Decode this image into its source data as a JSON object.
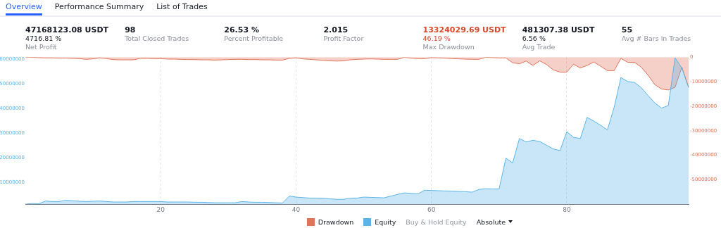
{
  "chart_data": [
    {
      "type": "other",
      "annotations": [
        "Overview",
        "Performance Summary",
        "List of Trades"
      ],
      "colors": [
        "#2962ff",
        "#131722",
        "#131722"
      ]
    },
    {
      "type": "other",
      "annotations": [
        "47168123.08 USDT\n4716.81 %\nNet Profit",
        "98\nTotal Closed Trades",
        "26.53 %\nPercent Profitable",
        "2.015\nProfit Factor",
        "13324029.69 USDT\n46.19 %\nMax Drawdown",
        "481307.38 USDT\n6.56 %\nAvg Trade",
        "55\nAvg # Bars in Trades"
      ],
      "colors": [
        "#131722",
        "#131722",
        "#131722",
        "#131722",
        "#d9482b",
        "#131722",
        "#131722"
      ]
    },
    {
      "type": "area",
      "x": [
        0,
        1,
        2,
        3,
        4,
        5,
        6,
        7,
        8,
        9,
        10,
        11,
        12,
        13,
        14,
        15,
        16,
        17,
        18,
        19,
        20,
        21,
        22,
        23,
        24,
        25,
        26,
        27,
        28,
        29,
        30,
        31,
        32,
        33,
        34,
        35,
        36,
        37,
        38,
        39,
        40,
        41,
        42,
        43,
        44,
        45,
        46,
        47,
        48,
        49,
        50,
        51,
        52,
        53,
        54,
        55,
        56,
        57,
        58,
        59,
        60,
        61,
        62,
        63,
        64,
        65,
        66,
        67,
        68,
        69,
        70,
        71,
        72,
        73,
        74,
        75,
        76,
        77,
        78,
        79,
        80,
        81,
        82,
        83,
        84,
        85,
        86,
        87,
        88,
        89,
        90,
        91,
        92,
        93,
        94,
        95,
        96,
        97,
        98
      ],
      "xlim": [
        0,
        98
      ],
      "xticks": [
        20,
        40,
        60,
        80
      ],
      "ylim": [
        1000000,
        60800000
      ],
      "yticks": [
        10000000,
        20000000,
        30000000,
        40000000,
        50000000,
        60000000
      ],
      "y2lim": [
        -60000000,
        0
      ],
      "y2ticks": [
        -50000000,
        -40000000,
        -30000000,
        -20000000,
        -10000000,
        0
      ],
      "grid": "x",
      "legend": "bottom",
      "annotations": [
        "Buy & Hold Equity",
        "Absolute"
      ],
      "series": [
        {
          "name": "Drawdown",
          "color": "#e0735a",
          "axis": "y2",
          "values": [
            0,
            -100000,
            -200000,
            -300000,
            -300000,
            -400000,
            -400000,
            -500000,
            -600000,
            -900000,
            -700000,
            -300000,
            -600000,
            -1000000,
            -1100000,
            -1100000,
            -1100000,
            -500000,
            -500000,
            -600000,
            -600000,
            -800000,
            -800000,
            -900000,
            -1000000,
            -1000000,
            -1100000,
            -1100000,
            -1200000,
            -1100000,
            -1000000,
            -900000,
            -900000,
            -1000000,
            -1000000,
            -1100000,
            -1100000,
            -1200000,
            -1200000,
            -500000,
            -300000,
            -700000,
            -900000,
            -1100000,
            -1300000,
            -1500000,
            -1600000,
            -1500000,
            -1100000,
            -900000,
            -800000,
            -700000,
            -800000,
            -900000,
            -900000,
            -900000,
            -100000,
            -400000,
            -600000,
            -600000,
            -200000,
            -300000,
            -400000,
            -600000,
            -700000,
            -800000,
            -900000,
            -900000,
            -100000,
            -200000,
            -300000,
            -300000,
            -2300000,
            -2700000,
            -1600000,
            -3400000,
            -1500000,
            -3000000,
            -5200000,
            -6100000,
            -6100000,
            -2900000,
            -4400000,
            -3400000,
            -2000000,
            -3700000,
            -5500000,
            -5500000,
            -500000,
            -2100000,
            -2100000,
            -4100000,
            -7300000,
            -11200000,
            -13000000,
            -13400000,
            -12300000,
            -4100000,
            -12300000
          ]
        },
        {
          "name": "Equity",
          "color": "#5ab4e8",
          "values": [
            1000000,
            1300000,
            1200000,
            2300000,
            2100000,
            2100000,
            2600000,
            2400000,
            2200000,
            2100000,
            2200000,
            2300000,
            2100000,
            1900000,
            1900000,
            1900000,
            2100000,
            2100000,
            2100000,
            2100000,
            2100000,
            1900000,
            1900000,
            1900000,
            1900000,
            1800000,
            1800000,
            1700000,
            1600000,
            1600000,
            1600000,
            1600000,
            2100000,
            1900000,
            1800000,
            1800000,
            1700000,
            1600000,
            1500000,
            4300000,
            3900000,
            3700000,
            3500000,
            3500000,
            3400000,
            3200000,
            3000000,
            3000000,
            3400000,
            3500000,
            3900000,
            3800000,
            3700000,
            3600000,
            4300000,
            5000000,
            5600000,
            5400000,
            5200000,
            6700000,
            6600000,
            6500000,
            6400000,
            6300000,
            6200000,
            6100000,
            5900000,
            7000000,
            7300000,
            7200000,
            7200000,
            19700000,
            17800000,
            27700000,
            26300000,
            27000000,
            26500000,
            25000000,
            23500000,
            22800000,
            30500000,
            28200000,
            27700000,
            36300000,
            34800000,
            33100000,
            31200000,
            40400000,
            52500000,
            50900000,
            50500000,
            48400000,
            45200000,
            42200000,
            40100000,
            41100000,
            60500000,
            56400000,
            48400000
          ]
        }
      ]
    }
  ]
}
